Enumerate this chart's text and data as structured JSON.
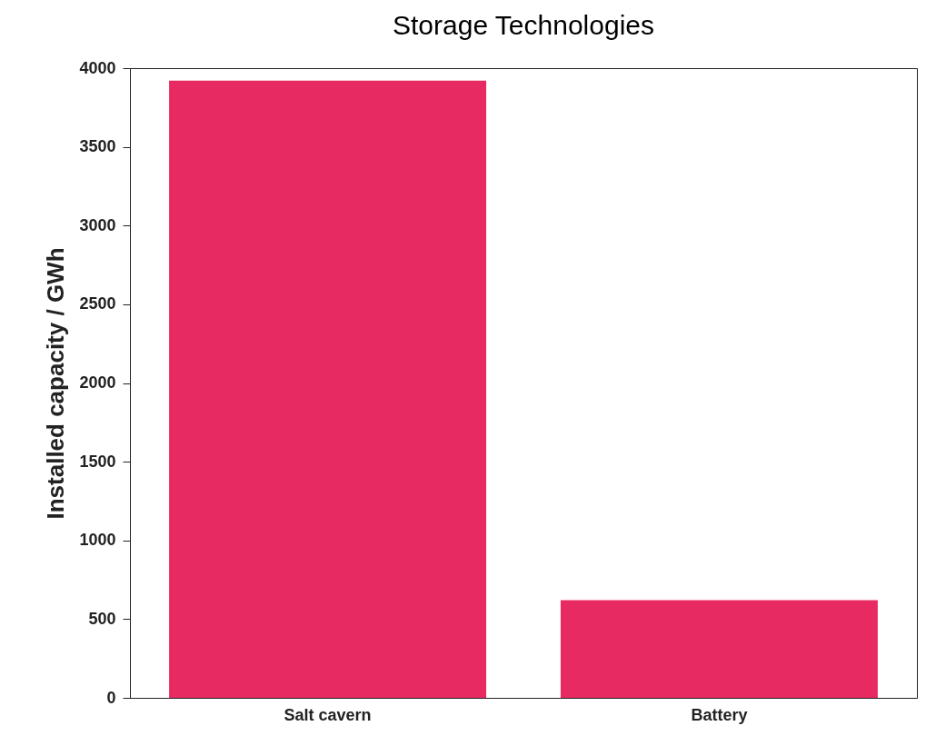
{
  "chart_data": {
    "type": "bar",
    "title": "Storage Technologies",
    "ylabel": "Installed capacity / GWh",
    "categories": [
      "Salt cavern",
      "Battery"
    ],
    "values": [
      3920,
      620
    ],
    "color": "#e82a62",
    "ylim": [
      0,
      4000
    ],
    "yticks": [
      0,
      500,
      1000,
      1500,
      2000,
      2500,
      3000,
      3500,
      4000
    ],
    "grid": false
  }
}
